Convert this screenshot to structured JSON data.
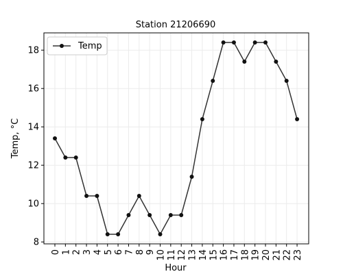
{
  "chart_data": {
    "type": "line",
    "title": "Station 21206690",
    "xlabel": "Hour",
    "ylabel": "Temp, °C",
    "categories": [
      "0",
      "1",
      "2",
      "3",
      "4",
      "5",
      "6",
      "7",
      "8",
      "9",
      "10",
      "11",
      "12",
      "13",
      "14",
      "15",
      "16",
      "17",
      "18",
      "19",
      "20",
      "21",
      "22",
      "23"
    ],
    "series": [
      {
        "name": "Temp",
        "values": [
          13.4,
          12.4,
          12.4,
          10.4,
          10.4,
          8.4,
          8.4,
          9.4,
          10.4,
          9.4,
          8.4,
          9.4,
          9.4,
          11.4,
          14.4,
          16.4,
          18.4,
          18.4,
          17.4,
          18.4,
          18.4,
          17.4,
          16.4,
          14.4
        ]
      }
    ],
    "ylim": [
      7.9,
      18.9
    ],
    "yticks": [
      8,
      10,
      12,
      14,
      16,
      18
    ],
    "grid": true,
    "legend": "top-left",
    "line_color": "#333333",
    "marker_color": "#111111",
    "grid_color": "#ebebeb"
  }
}
